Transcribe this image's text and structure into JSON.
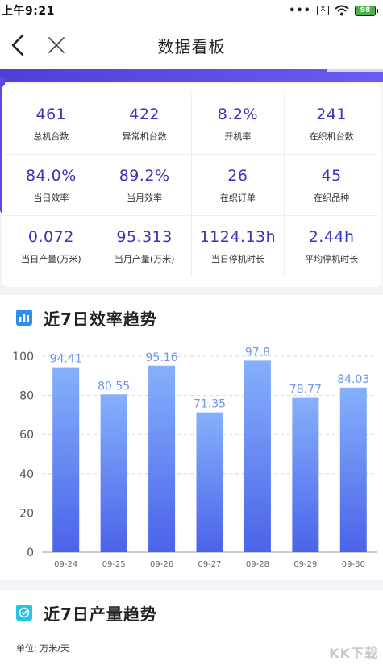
{
  "status": {
    "time": "上午9:21",
    "dots": "•••",
    "sim": "X",
    "battery": "98"
  },
  "nav": {
    "title": "数据看板"
  },
  "stats": [
    {
      "value": "461",
      "label": "总机台数"
    },
    {
      "value": "422",
      "label": "异常机台数"
    },
    {
      "value": "8.2%",
      "label": "开机率"
    },
    {
      "value": "241",
      "label": "在织机台数"
    },
    {
      "value": "84.0%",
      "label": "当日效率"
    },
    {
      "value": "89.2%",
      "label": "当月效率"
    },
    {
      "value": "26",
      "label": "在织订单"
    },
    {
      "value": "45",
      "label": "在织品种"
    },
    {
      "value": "0.072",
      "label": "当日产量(万米)"
    },
    {
      "value": "95.313",
      "label": "当月产量(万米)"
    },
    {
      "value": "1124.13h",
      "label": "当日停机时长"
    },
    {
      "value": "2.44h",
      "label": "平均停机时长"
    }
  ],
  "efficiency_section": {
    "title": "近7日效率趋势",
    "icon": "bar-chart-icon"
  },
  "output_section": {
    "title": "近7日产量趋势",
    "icon": "clock-icon",
    "unit": "单位: 万米/天"
  },
  "watermark": "KK下载",
  "colors": {
    "accent": "#3c33b8",
    "band": "#4f3fd6",
    "bar_top": "#86b0fb",
    "bar_bottom": "#4b63e9",
    "label": "#6f93ee"
  },
  "chart_data": {
    "type": "bar",
    "categories": [
      "09-24",
      "09-25",
      "09-26",
      "09-27",
      "09-28",
      "09-29",
      "09-30"
    ],
    "values": [
      94.41,
      80.55,
      95.16,
      71.35,
      97.8,
      78.77,
      84.03
    ],
    "ylim": [
      0,
      100
    ],
    "yticks": [
      0,
      20,
      40,
      60,
      80,
      100
    ],
    "grid": true,
    "title": "",
    "xlabel": "",
    "ylabel": ""
  }
}
